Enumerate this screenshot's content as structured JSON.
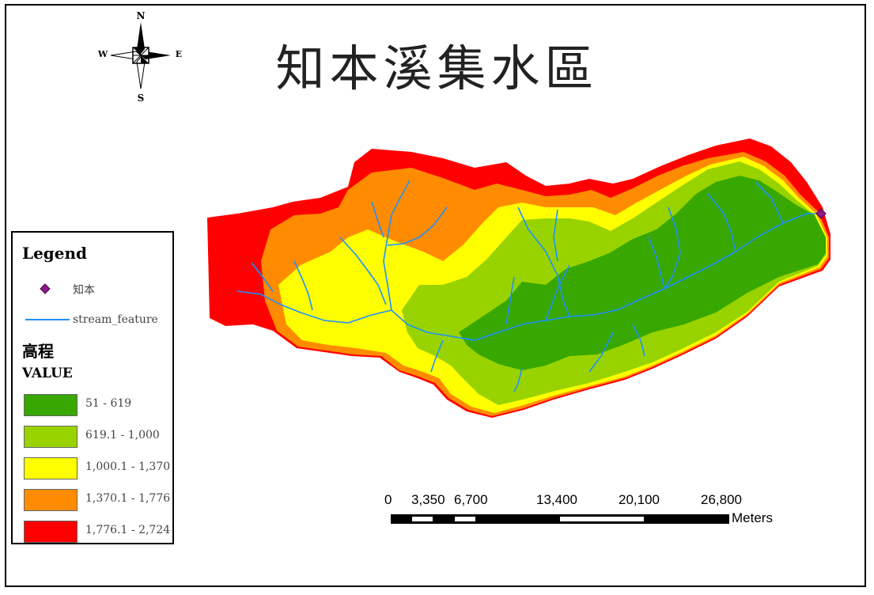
{
  "title": "知本溪集水區",
  "north_arrow": {
    "n": "N",
    "s": "S",
    "e": "E",
    "w": "W",
    "icon": "compass-rose-icon"
  },
  "legend": {
    "heading": "Legend",
    "point_label": "知本",
    "stream_label": "stream_feature",
    "raster_title": "高程",
    "value_title": "VALUE",
    "classes": [
      {
        "label": "51 - 619",
        "color": "#38a800"
      },
      {
        "label": "619.1 - 1,000",
        "color": "#98d300"
      },
      {
        "label": "1,000.1 - 1,370",
        "color": "#ffff00"
      },
      {
        "label": "1,370.1 - 1,776",
        "color": "#ff8c00"
      },
      {
        "label": "1,776.1 - 2,724",
        "color": "#ff0000"
      }
    ],
    "point_color": "#8b1a8b",
    "stream_color": "#1e90ff"
  },
  "scale_bar": {
    "ticks": [
      "0",
      "3,350",
      "6,700",
      "13,400",
      "20,100",
      "26,800"
    ],
    "units": "Meters"
  }
}
